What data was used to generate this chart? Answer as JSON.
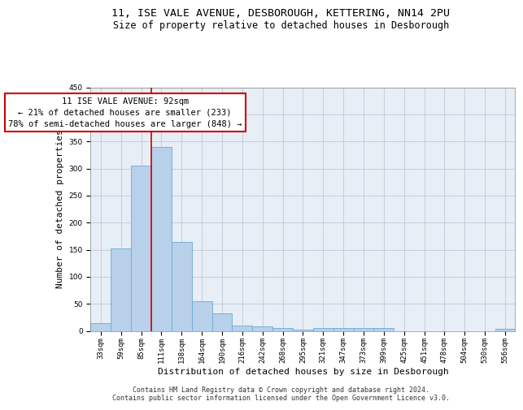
{
  "title_line1": "11, ISE VALE AVENUE, DESBOROUGH, KETTERING, NN14 2PU",
  "title_line2": "Size of property relative to detached houses in Desborough",
  "xlabel": "Distribution of detached houses by size in Desborough",
  "ylabel": "Number of detached properties",
  "footnote": "Contains HM Land Registry data © Crown copyright and database right 2024.\nContains public sector information licensed under the Open Government Licence v3.0.",
  "bar_labels": [
    "33sqm",
    "59sqm",
    "85sqm",
    "111sqm",
    "138sqm",
    "164sqm",
    "190sqm",
    "216sqm",
    "242sqm",
    "268sqm",
    "295sqm",
    "321sqm",
    "347sqm",
    "373sqm",
    "399sqm",
    "425sqm",
    "451sqm",
    "478sqm",
    "504sqm",
    "530sqm",
    "556sqm"
  ],
  "bar_values": [
    15,
    152,
    305,
    340,
    165,
    55,
    33,
    10,
    8,
    6,
    3,
    5,
    5,
    5,
    5,
    0,
    0,
    0,
    0,
    0,
    4
  ],
  "bar_color": "#b8d0ea",
  "bar_edgecolor": "#6aaad4",
  "annotation_title": "11 ISE VALE AVENUE: 92sqm",
  "annotation_line2": "← 21% of detached houses are smaller (233)",
  "annotation_line3": "78% of semi-detached houses are larger (848) →",
  "annotation_box_color": "#ffffff",
  "annotation_box_edgecolor": "#cc0000",
  "vline_color": "#cc0000",
  "ylim": [
    0,
    450
  ],
  "yticks": [
    0,
    50,
    100,
    150,
    200,
    250,
    300,
    350,
    400,
    450
  ],
  "background_color": "#ffffff",
  "axes_facecolor": "#e8eef6",
  "grid_color": "#c0c8d8",
  "title_fontsize": 9.5,
  "subtitle_fontsize": 8.5,
  "axis_label_fontsize": 8,
  "tick_fontsize": 6.5,
  "footnote_fontsize": 6,
  "annotation_fontsize": 7.5,
  "vline_x": 2.5
}
